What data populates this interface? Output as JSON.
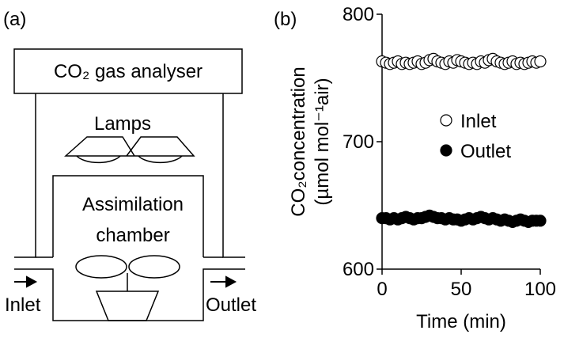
{
  "diagram": {
    "label": "(a)",
    "analyser": "CO₂ gas analyser",
    "lamps": "Lamps",
    "chamber_line1": "Assimilation",
    "chamber_line2": "chamber",
    "inlet": "Inlet",
    "outlet": "Outlet"
  },
  "chart_data": {
    "type": "scatter",
    "panel_label": "(b)",
    "x_label": "Time (min)",
    "y_label": [
      "CO₂concentration",
      "(µmol mol⁻¹air)"
    ],
    "x": [
      0,
      2.5,
      5,
      7.5,
      10,
      12.5,
      15,
      17.5,
      20,
      22.5,
      25,
      27.5,
      30,
      32.5,
      35,
      37.5,
      40,
      42.5,
      45,
      47.5,
      50,
      52.5,
      55,
      57.5,
      60,
      62.5,
      65,
      67.5,
      70,
      72.5,
      75,
      77.5,
      80,
      82.5,
      85,
      87.5,
      90,
      92.5,
      95,
      97.5,
      100
    ],
    "series": [
      {
        "name": "Inlet",
        "color": "#ffffff",
        "values": [
          763,
          762,
          761,
          762,
          763,
          761,
          762,
          761,
          762,
          763,
          761,
          762,
          764,
          765,
          763,
          762,
          761,
          763,
          762,
          764,
          763,
          762,
          761,
          762,
          761,
          763,
          762,
          764,
          765,
          763,
          762,
          761,
          762,
          763,
          761,
          762,
          761,
          762,
          763,
          762,
          763
        ]
      },
      {
        "name": "Outlet",
        "color": "#000000",
        "values": [
          640,
          640,
          639,
          640,
          639,
          640,
          641,
          640,
          639,
          640,
          640,
          641,
          642,
          641,
          640,
          640,
          639,
          640,
          639,
          639,
          638,
          639,
          640,
          639,
          640,
          641,
          640,
          639,
          640,
          639,
          638,
          639,
          638,
          637,
          638,
          639,
          638,
          637,
          638,
          638,
          638
        ]
      }
    ],
    "xlim": [
      0,
      100
    ],
    "xticks": [
      0,
      50,
      100
    ],
    "ylim": [
      600,
      800
    ],
    "yticks": [
      600,
      700,
      800
    ]
  }
}
